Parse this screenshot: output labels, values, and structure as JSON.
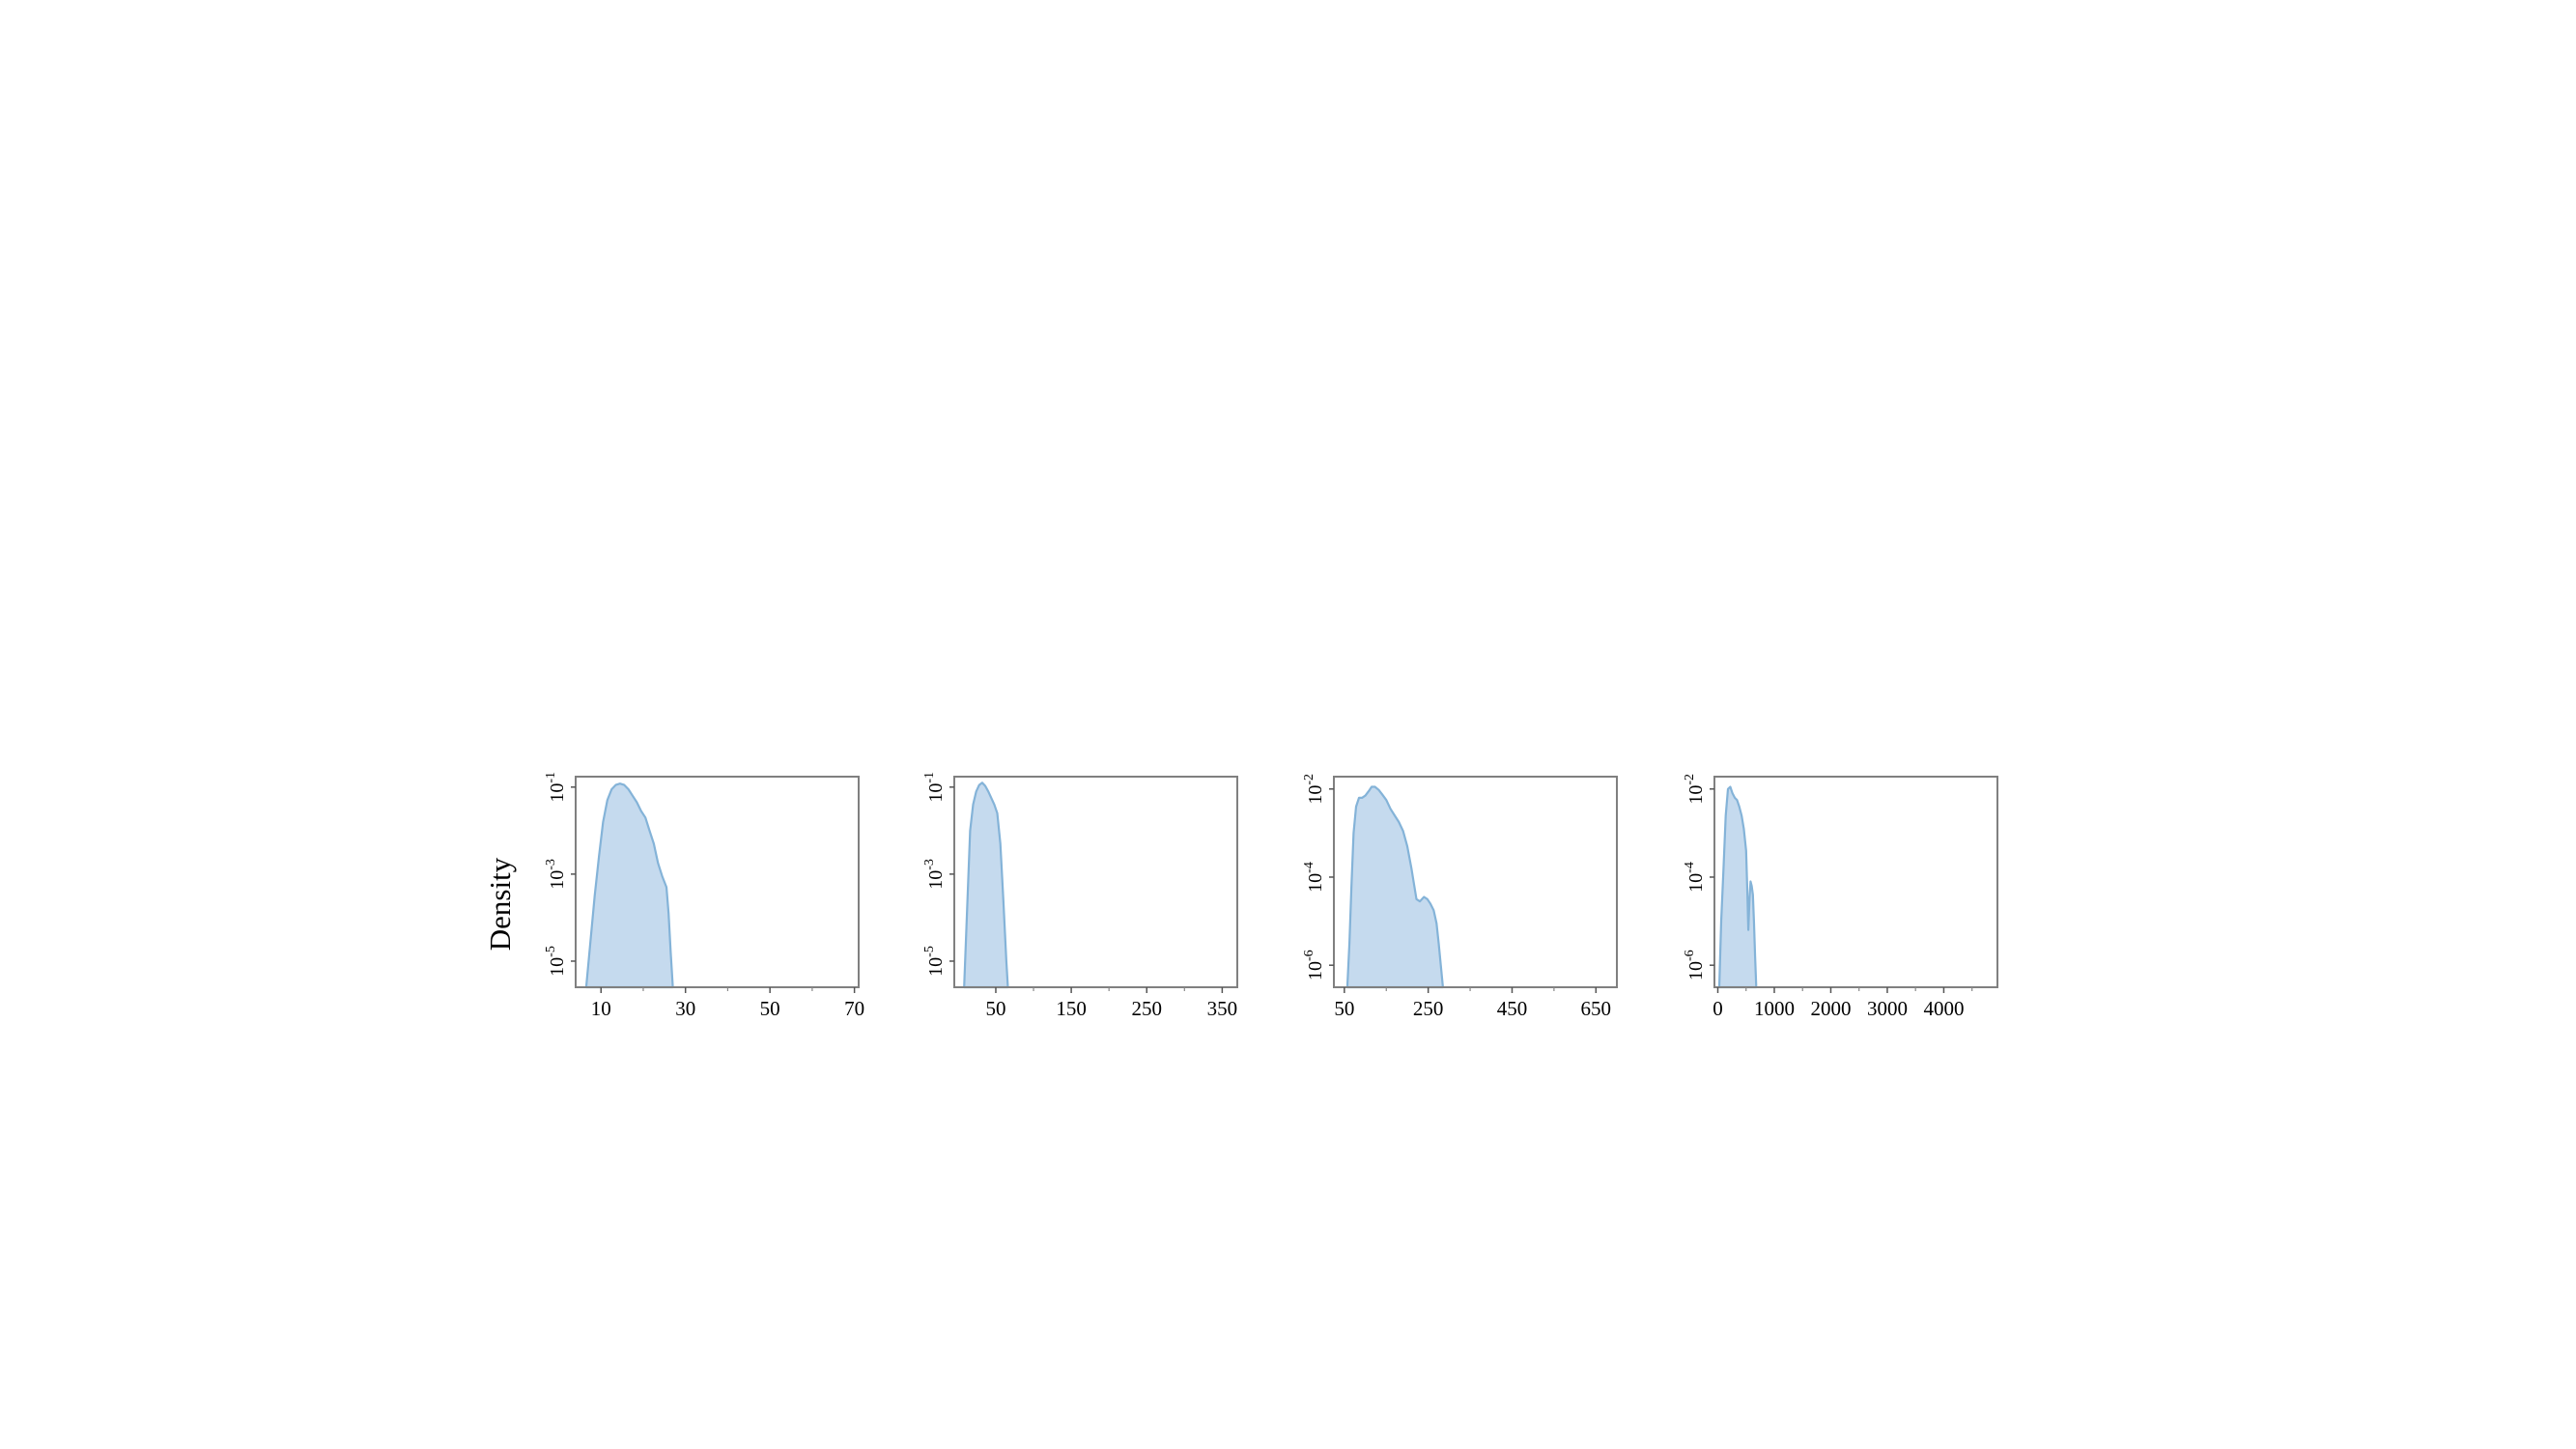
{
  "figure": {
    "ylabel": "Density",
    "fill_color": "#c5daee",
    "line_color": "#84b3d8",
    "frame_color": "#808080"
  },
  "chart_data": [
    {
      "type": "area",
      "title": "",
      "xlabel": "",
      "ylabel": "Density",
      "yscale": "log",
      "xlim": [
        4,
        71
      ],
      "ylim_log10": [
        -5.6,
        -0.76
      ],
      "xticks": [
        10,
        30,
        50,
        70
      ],
      "xtick_labels": [
        "10",
        "30",
        "50",
        "70"
      ],
      "xminor_ticks": [
        20,
        40,
        60
      ],
      "yticks": [
        -1,
        -3,
        -5
      ],
      "ytick_labels": [
        {
          "base": "10",
          "exp": "-1"
        },
        {
          "base": "10",
          "exp": "-3"
        },
        {
          "base": "10",
          "exp": "-5"
        }
      ],
      "grid": false,
      "x": [
        6.5,
        7.5,
        8.5,
        9.5,
        10.5,
        11.5,
        12.5,
        13.5,
        14.5,
        15.5,
        16.5,
        17.5,
        18.5,
        19.5,
        20.5,
        21.5,
        22.5,
        23.5,
        24.5,
        25.5,
        26.0,
        26.5,
        27.0
      ],
      "log10_density": [
        -5.6,
        -4.55,
        -3.5,
        -2.6,
        -1.8,
        -1.3,
        -1.05,
        -0.95,
        -0.92,
        -0.95,
        -1.05,
        -1.2,
        -1.35,
        -1.55,
        -1.7,
        -2.0,
        -2.3,
        -2.75,
        -3.05,
        -3.3,
        -3.9,
        -4.8,
        -5.6
      ]
    },
    {
      "type": "area",
      "title": "",
      "xlabel": "",
      "ylabel": "Density",
      "yscale": "log",
      "xlim": [
        -5,
        370
      ],
      "ylim_log10": [
        -5.6,
        -0.76
      ],
      "xticks": [
        50,
        150,
        250,
        350
      ],
      "xtick_labels": [
        "50",
        "150",
        "250",
        "350"
      ],
      "xminor_ticks": [
        100,
        200,
        300
      ],
      "yticks": [
        -1,
        -3,
        -5
      ],
      "ytick_labels": [
        {
          "base": "10",
          "exp": "-1"
        },
        {
          "base": "10",
          "exp": "-3"
        },
        {
          "base": "10",
          "exp": "-5"
        }
      ],
      "grid": false,
      "x": [
        8,
        12,
        16,
        20,
        24,
        28,
        32,
        36,
        40,
        44,
        48,
        52,
        56,
        60,
        64,
        66
      ],
      "log10_density": [
        -5.6,
        -3.8,
        -2.0,
        -1.4,
        -1.1,
        -0.95,
        -0.9,
        -0.97,
        -1.1,
        -1.25,
        -1.4,
        -1.6,
        -2.3,
        -3.6,
        -5.0,
        -5.6
      ]
    },
    {
      "type": "area",
      "title": "",
      "xlabel": "",
      "ylabel": "Density",
      "yscale": "log",
      "xlim": [
        25,
        700
      ],
      "ylim_log10": [
        -6.5,
        -1.72
      ],
      "xticks": [
        50,
        250,
        450,
        650
      ],
      "xtick_labels": [
        "50",
        "250",
        "450",
        "650"
      ],
      "xminor_ticks": [
        150,
        350,
        550
      ],
      "yticks": [
        -2,
        -4,
        -6
      ],
      "ytick_labels": [
        {
          "base": "10",
          "exp": "-2"
        },
        {
          "base": "10",
          "exp": "-4"
        },
        {
          "base": "10",
          "exp": "-6"
        }
      ],
      "grid": false,
      "x": [
        57,
        62,
        67,
        72,
        78,
        85,
        92,
        100,
        108,
        115,
        123,
        132,
        140,
        150,
        160,
        170,
        180,
        190,
        200,
        210,
        215,
        222,
        230,
        240,
        248,
        255,
        263,
        270,
        275,
        280,
        285
      ],
      "log10_density": [
        -6.5,
        -5.5,
        -4.2,
        -3.0,
        -2.4,
        -2.2,
        -2.2,
        -2.15,
        -2.05,
        -1.95,
        -1.95,
        -2.02,
        -2.12,
        -2.25,
        -2.45,
        -2.6,
        -2.75,
        -2.95,
        -3.3,
        -3.8,
        -4.1,
        -4.5,
        -4.55,
        -4.45,
        -4.5,
        -4.6,
        -4.75,
        -5.05,
        -5.5,
        -6.0,
        -6.5
      ]
    },
    {
      "type": "area",
      "title": "",
      "xlabel": "",
      "ylabel": "Density",
      "yscale": "log",
      "xlim": [
        -60,
        4950
      ],
      "ylim_log10": [
        -6.5,
        -1.72
      ],
      "xticks": [
        0,
        1000,
        2000,
        3000,
        4000
      ],
      "xtick_labels": [
        "0",
        "1000",
        "2000",
        "3000",
        "4000"
      ],
      "xminor_ticks": [
        500,
        1500,
        2500,
        3500,
        4500
      ],
      "yticks": [
        -2,
        -4,
        -6
      ],
      "ytick_labels": [
        {
          "base": "10",
          "exp": "-2"
        },
        {
          "base": "10",
          "exp": "-4"
        },
        {
          "base": "10",
          "exp": "-6"
        }
      ],
      "grid": false,
      "x": [
        25,
        60,
        100,
        140,
        180,
        220,
        260,
        300,
        340,
        380,
        420,
        460,
        500,
        520,
        540,
        560,
        580,
        600,
        620,
        640,
        660,
        680
      ],
      "log10_density": [
        -6.5,
        -5.0,
        -3.8,
        -2.6,
        -2.0,
        -1.95,
        -2.1,
        -2.2,
        -2.25,
        -2.4,
        -2.6,
        -2.9,
        -3.4,
        -4.2,
        -5.2,
        -4.5,
        -4.1,
        -4.2,
        -4.4,
        -5.0,
        -5.8,
        -6.5
      ]
    }
  ]
}
